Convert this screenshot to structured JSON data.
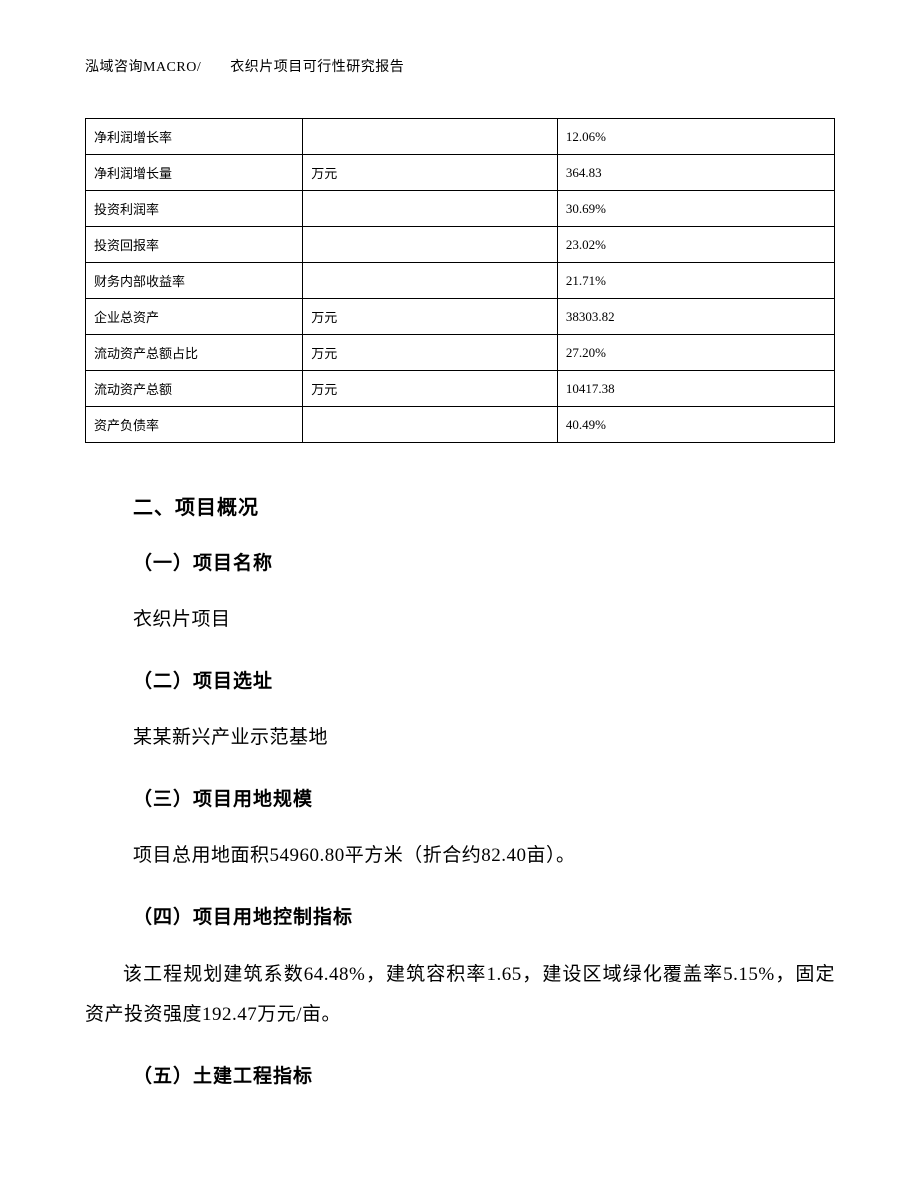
{
  "header": {
    "text": "泓域咨询MACRO/　　衣织片项目可行性研究报告"
  },
  "table": {
    "rows": [
      {
        "label": "净利润增长率",
        "unit": "",
        "value": "12.06%"
      },
      {
        "label": "净利润增长量",
        "unit": "万元",
        "value": "364.83"
      },
      {
        "label": "投资利润率",
        "unit": "",
        "value": "30.69%"
      },
      {
        "label": "投资回报率",
        "unit": "",
        "value": "23.02%"
      },
      {
        "label": "财务内部收益率",
        "unit": "",
        "value": "21.71%"
      },
      {
        "label": "企业总资产",
        "unit": "万元",
        "value": "38303.82"
      },
      {
        "label": "流动资产总额占比",
        "unit": "万元",
        "value": "27.20%"
      },
      {
        "label": "流动资产总额",
        "unit": "万元",
        "value": "10417.38"
      },
      {
        "label": "资产负债率",
        "unit": "",
        "value": "40.49%"
      }
    ]
  },
  "sections": {
    "main_title": "二、项目概况",
    "s1": {
      "title": "（一）项目名称",
      "text": "衣织片项目"
    },
    "s2": {
      "title": "（二）项目选址",
      "text": "某某新兴产业示范基地"
    },
    "s3": {
      "title": "（三）项目用地规模",
      "text": "项目总用地面积54960.80平方米（折合约82.40亩）。"
    },
    "s4": {
      "title": "（四）项目用地控制指标",
      "text": "该工程规划建筑系数64.48%，建筑容积率1.65，建设区域绿化覆盖率5.15%，固定资产投资强度192.47万元/亩。"
    },
    "s5": {
      "title": "（五）土建工程指标"
    }
  }
}
